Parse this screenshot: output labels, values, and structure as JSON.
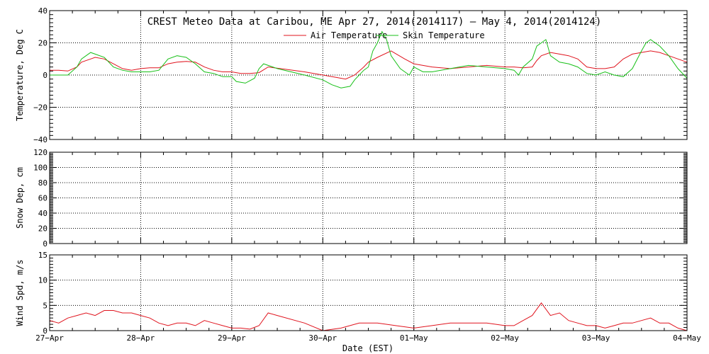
{
  "chart_data": [
    {
      "type": "line",
      "title": "CREST Meteo Data at Caribou, ME   Apr 27, 2014(2014117) — May  4, 2014(2014124)",
      "ylabel": "Temperature, Deg C",
      "ylim": [
        -40,
        40
      ],
      "yticks": [
        "40",
        "20",
        "0",
        "−20",
        "−40"
      ],
      "xlim": [
        0,
        7
      ],
      "grid": true,
      "legend_position": "top-center",
      "series": [
        {
          "name": "Air Temperature",
          "color": "#e0141e",
          "x": [
            0,
            0.1,
            0.2,
            0.3,
            0.35,
            0.45,
            0.5,
            0.6,
            0.7,
            0.8,
            0.9,
            1.0,
            1.1,
            1.2,
            1.3,
            1.4,
            1.5,
            1.6,
            1.7,
            1.8,
            1.9,
            2.0,
            2.1,
            2.2,
            2.3,
            2.4,
            2.6,
            2.8,
            3.0,
            3.15,
            3.25,
            3.35,
            3.45,
            3.5,
            3.6,
            3.75,
            3.9,
            4.0,
            4.2,
            4.4,
            4.6,
            4.8,
            5.0,
            5.1,
            5.2,
            5.3,
            5.35,
            5.4,
            5.5,
            5.6,
            5.7,
            5.8,
            5.9,
            6.0,
            6.1,
            6.2,
            6.3,
            6.4,
            6.5,
            6.6,
            6.7,
            6.8,
            6.9,
            7.0
          ],
          "y": [
            3,
            3,
            2.5,
            5,
            8,
            10,
            11,
            10,
            7,
            4,
            3,
            4,
            4.5,
            4.5,
            7,
            8,
            8.5,
            8,
            5,
            3,
            2,
            2,
            1,
            1,
            1.5,
            5,
            3.5,
            2,
            0,
            -1.5,
            -2.5,
            0,
            5,
            8,
            11,
            15,
            10,
            7,
            5,
            4,
            5,
            6,
            5,
            5,
            4.5,
            5,
            9,
            12,
            14,
            13,
            12,
            10,
            5,
            4,
            4,
            5,
            10,
            13,
            14,
            15,
            14,
            12,
            10,
            8
          ]
        },
        {
          "name": "Skin Temperature",
          "color": "#18c018",
          "x": [
            0,
            0.1,
            0.2,
            0.3,
            0.35,
            0.45,
            0.5,
            0.6,
            0.7,
            0.8,
            0.9,
            1.0,
            1.1,
            1.2,
            1.3,
            1.4,
            1.5,
            1.6,
            1.7,
            1.8,
            1.9,
            2.0,
            2.05,
            2.15,
            2.25,
            2.3,
            2.35,
            2.5,
            2.8,
            3.0,
            3.1,
            3.2,
            3.3,
            3.35,
            3.45,
            3.5,
            3.55,
            3.6,
            3.65,
            3.7,
            3.75,
            3.85,
            3.95,
            4.0,
            4.1,
            4.2,
            4.4,
            4.6,
            4.8,
            5.0,
            5.1,
            5.15,
            5.2,
            5.3,
            5.35,
            5.4,
            5.45,
            5.5,
            5.6,
            5.7,
            5.8,
            5.9,
            6.0,
            6.1,
            6.2,
            6.3,
            6.4,
            6.5,
            6.55,
            6.6,
            6.7,
            6.8,
            6.9,
            7.0
          ],
          "y": [
            0,
            0,
            0,
            5,
            10,
            14,
            13,
            11,
            5,
            3,
            2,
            2,
            2,
            3,
            10,
            12,
            11,
            7,
            2,
            1,
            -1,
            -1,
            -4,
            -5,
            -2,
            4,
            7,
            4,
            0,
            -3,
            -6,
            -8,
            -7,
            -3,
            3,
            5,
            15,
            20,
            27,
            22,
            12,
            4,
            0,
            5,
            2,
            2,
            4,
            6,
            5,
            4,
            3,
            0,
            5,
            10,
            18,
            20,
            22,
            12,
            8,
            7,
            5,
            1,
            0,
            2,
            0,
            -1,
            4,
            15,
            20,
            22,
            18,
            12,
            4,
            -2
          ]
        }
      ]
    },
    {
      "type": "line",
      "ylabel": "Snow Dep, cm",
      "ylim": [
        0,
        120
      ],
      "yticks": [
        "120",
        "100",
        "80",
        "60",
        "40",
        "20",
        "0"
      ],
      "xlim": [
        0,
        7
      ],
      "grid": true,
      "series": []
    },
    {
      "type": "line",
      "ylabel": "Wind Spd, m/s",
      "ylim": [
        0,
        15
      ],
      "yticks": [
        "15",
        "10",
        "5",
        "0"
      ],
      "xlim": [
        0,
        7
      ],
      "grid": true,
      "xlabel": "Date (EST)",
      "xticks": [
        "27−Apr",
        "28−Apr",
        "29−Apr",
        "30−Apr",
        "01−May",
        "02−May",
        "03−May",
        "04−May"
      ],
      "series": [
        {
          "color": "#e0141e",
          "x": [
            0,
            0.1,
            0.2,
            0.3,
            0.4,
            0.5,
            0.6,
            0.7,
            0.8,
            0.9,
            1.0,
            1.1,
            1.2,
            1.3,
            1.4,
            1.5,
            1.6,
            1.7,
            1.8,
            1.9,
            2.0,
            2.1,
            2.2,
            2.3,
            2.4,
            2.5,
            2.8,
            3.0,
            3.2,
            3.4,
            3.6,
            3.8,
            4.0,
            4.2,
            4.4,
            4.6,
            4.8,
            5.0,
            5.1,
            5.2,
            5.3,
            5.4,
            5.5,
            5.6,
            5.7,
            5.8,
            5.9,
            6.0,
            6.1,
            6.2,
            6.3,
            6.4,
            6.5,
            6.6,
            6.7,
            6.8,
            6.9,
            7.0
          ],
          "y": [
            2,
            1.5,
            2.5,
            3,
            3.5,
            3,
            4,
            4,
            3.5,
            3.5,
            3,
            2.5,
            1.5,
            1,
            1.5,
            1.5,
            1,
            2,
            1.5,
            1,
            0.5,
            0.5,
            0.3,
            1,
            3.5,
            3,
            1.5,
            0,
            0.5,
            1.5,
            1.5,
            1,
            0.5,
            1,
            1.5,
            1.5,
            1.5,
            1,
            1,
            2,
            3,
            5.5,
            3,
            3.5,
            2,
            1.5,
            1,
            1,
            0.5,
            1,
            1.5,
            1.5,
            2,
            2.5,
            1.5,
            1.5,
            0.5,
            0
          ]
        }
      ]
    }
  ]
}
